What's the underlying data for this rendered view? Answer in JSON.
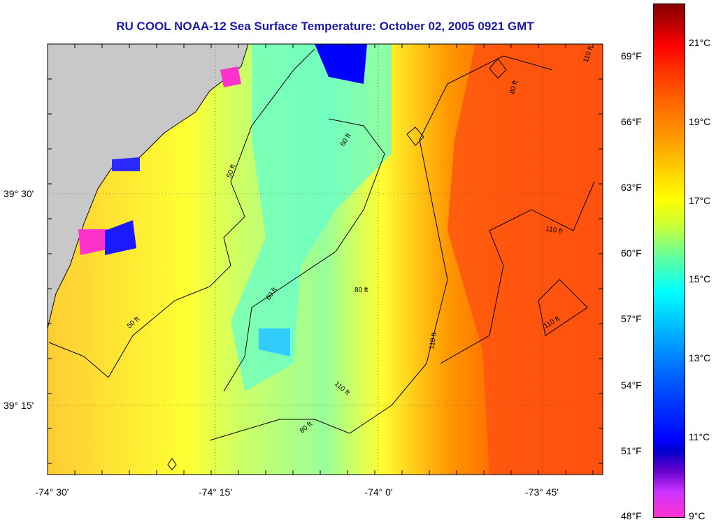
{
  "title": "RU COOL  NOAA-12  Sea Surface Temperature:  October 02, 2005 0921 GMT",
  "colors": {
    "land": "#c8c8c8",
    "title": "#1a1aa8"
  },
  "lon_ticks": [
    {
      "lon": -74.5,
      "label": "-74° 30'"
    },
    {
      "lon": -74.25,
      "label": "-74° 15'"
    },
    {
      "lon": -74.0,
      "label": "-74° 0'"
    },
    {
      "lon": -73.75,
      "label": "-73° 45'"
    }
  ],
  "lat_ticks": [
    {
      "lat": 39.5,
      "label": "39° 30'"
    },
    {
      "lat": 39.25,
      "label": "39° 15'"
    }
  ],
  "fahrenheit_ticks": [
    "69°F",
    "66°F",
    "63°F",
    "60°F",
    "57°F",
    "54°F",
    "51°F",
    "48°F"
  ],
  "celsius_ticks": [
    "21°C",
    "19°C",
    "17°C",
    "15°C",
    "13°C",
    "11°C",
    "9°C"
  ],
  "contour_labels": [
    "50 ft",
    "50 ft",
    "60 ft",
    "60 ft",
    "80 ft",
    "80 ft",
    "80 ft",
    "110 ft",
    "110 ft",
    "110 ft",
    "110 ft",
    "110 ft"
  ],
  "color_scale": {
    "min_c": 9,
    "max_c": 22
  }
}
